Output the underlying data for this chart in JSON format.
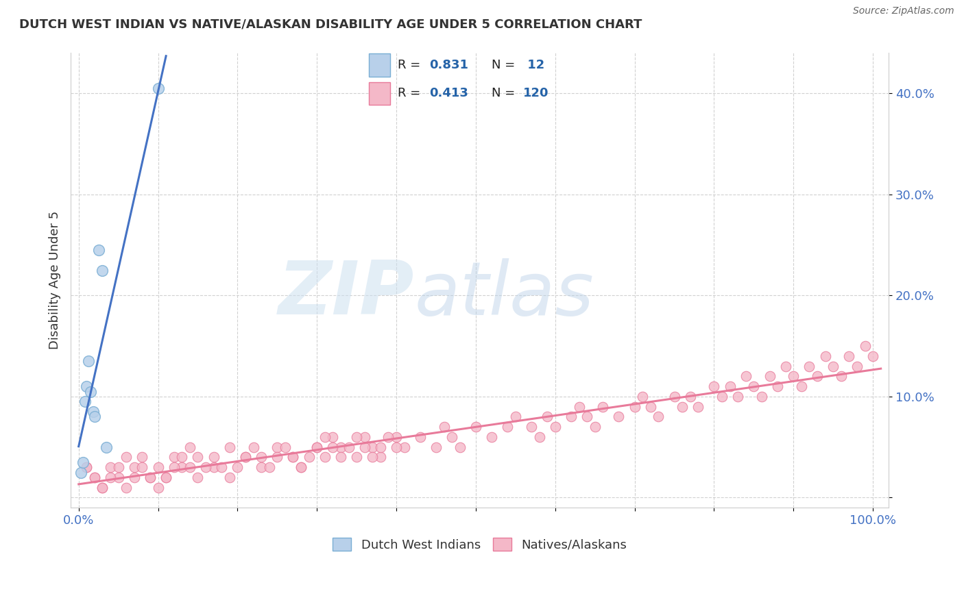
{
  "title": "DUTCH WEST INDIAN VS NATIVE/ALASKAN DISABILITY AGE UNDER 5 CORRELATION CHART",
  "source": "Source: ZipAtlas.com",
  "ylabel": "Disability Age Under 5",
  "title_color": "#333333",
  "source_color": "#666666",
  "ylabel_color": "#333333",
  "tick_color": "#4472c4",
  "blue_face": "#b8d0ea",
  "blue_edge": "#7aaed4",
  "pink_face": "#f4b8c8",
  "pink_edge": "#e87a9a",
  "blue_line": "#4472c4",
  "pink_line": "#e87a9a",
  "grid_color": "#cccccc",
  "watermark_zip_color": "#c8dff0",
  "watermark_atlas_color": "#b0cce0",
  "dutch_x": [
    0.3,
    0.5,
    0.8,
    1.0,
    1.2,
    1.5,
    1.8,
    2.0,
    2.5,
    3.0,
    3.5,
    10.0
  ],
  "dutch_y": [
    2.5,
    3.5,
    9.5,
    11.0,
    13.5,
    10.5,
    8.5,
    8.0,
    24.5,
    22.5,
    5.0,
    40.5
  ],
  "native_x": [
    1,
    2,
    3,
    4,
    5,
    6,
    7,
    8,
    9,
    10,
    11,
    12,
    13,
    14,
    15,
    17,
    19,
    21,
    23,
    25,
    27,
    28,
    30,
    31,
    32,
    33,
    35,
    36,
    37,
    38,
    40,
    41,
    43,
    45,
    46,
    47,
    48,
    50,
    52,
    54,
    55,
    57,
    58,
    59,
    60,
    62,
    63,
    64,
    65,
    66,
    68,
    70,
    71,
    72,
    73,
    75,
    76,
    77,
    78,
    80,
    81,
    82,
    83,
    84,
    85,
    86,
    87,
    88,
    89,
    90,
    91,
    92,
    93,
    94,
    95,
    96,
    97,
    98,
    99,
    100,
    1,
    2,
    3,
    4,
    5,
    6,
    7,
    8,
    9,
    10,
    11,
    12,
    13,
    14,
    15,
    16,
    17,
    18,
    19,
    20,
    21,
    22,
    23,
    24,
    25,
    26,
    27,
    28,
    29,
    30,
    31,
    32,
    33,
    34,
    35,
    36,
    37,
    38,
    39,
    40
  ],
  "native_y": [
    3,
    2,
    1,
    3,
    2,
    4,
    3,
    4,
    2,
    3,
    2,
    4,
    3,
    5,
    4,
    3,
    5,
    4,
    3,
    5,
    4,
    3,
    5,
    4,
    6,
    5,
    4,
    6,
    5,
    4,
    6,
    5,
    6,
    5,
    7,
    6,
    5,
    7,
    6,
    7,
    8,
    7,
    6,
    8,
    7,
    8,
    9,
    8,
    7,
    9,
    8,
    9,
    10,
    9,
    8,
    10,
    9,
    10,
    9,
    11,
    10,
    11,
    10,
    12,
    11,
    10,
    12,
    11,
    13,
    12,
    11,
    13,
    12,
    14,
    13,
    12,
    14,
    13,
    15,
    14,
    3,
    2,
    1,
    2,
    3,
    1,
    2,
    3,
    2,
    1,
    2,
    3,
    4,
    3,
    2,
    3,
    4,
    3,
    2,
    3,
    4,
    5,
    4,
    3,
    4,
    5,
    4,
    3,
    4,
    5,
    6,
    5,
    4,
    5,
    6,
    5,
    4,
    5,
    6,
    5
  ],
  "xlim": [
    -1,
    102
  ],
  "ylim": [
    -1,
    44
  ],
  "x_tick_pos": [
    0,
    10,
    20,
    30,
    40,
    50,
    60,
    70,
    80,
    90,
    100
  ],
  "y_tick_pos": [
    0,
    10,
    20,
    30,
    40
  ]
}
